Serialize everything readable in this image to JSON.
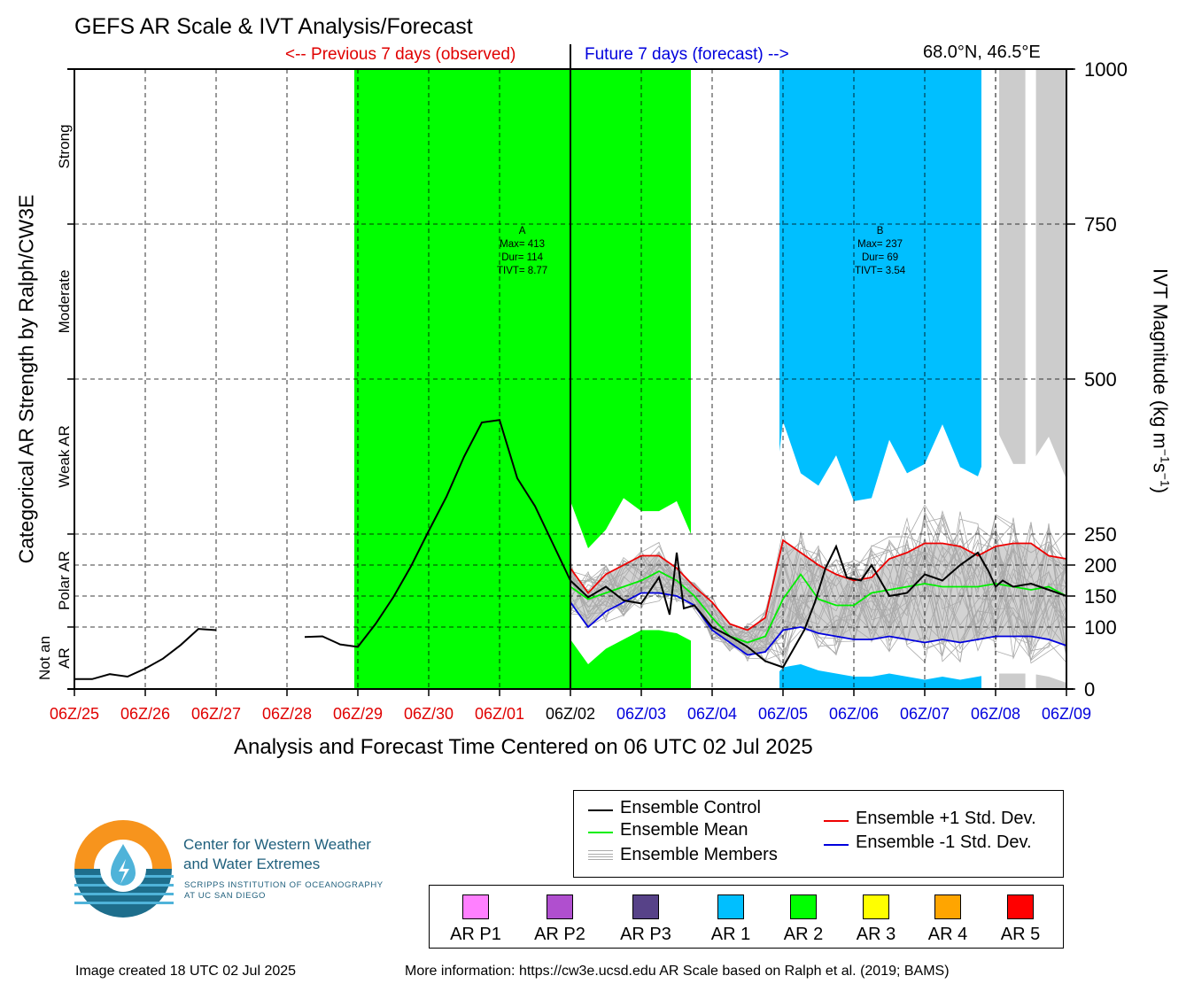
{
  "header": {
    "title": "GEFS AR Scale & IVT Analysis/Forecast",
    "previous_label": "<-- Previous 7 days (observed)",
    "future_label": "Future 7 days (forecast) -->",
    "location": "68.0°N, 46.5°E"
  },
  "chart_data": {
    "type": "line",
    "xlabel": "Analysis and Forecast Time Centered on 06 UTC 02 Jul 2025",
    "ylabel_left": "Categorical AR Strength by Ralph/CW3E",
    "ylabel_right_main": "IVT Magnitude (kg m",
    "ylabel_right_sup1": "−1",
    "ylabel_right_mid": "s",
    "ylabel_right_sup2": "−1",
    "ylabel_right_end": ")",
    "x_ticks": [
      {
        "label": "06Z/25",
        "color": "#e00000"
      },
      {
        "label": "06Z/26",
        "color": "#e00000"
      },
      {
        "label": "06Z/27",
        "color": "#e00000"
      },
      {
        "label": "06Z/28",
        "color": "#e00000"
      },
      {
        "label": "06Z/29",
        "color": "#e00000"
      },
      {
        "label": "06Z/30",
        "color": "#e00000"
      },
      {
        "label": "06Z/01",
        "color": "#e00000"
      },
      {
        "label": "06Z/02",
        "color": "#000000"
      },
      {
        "label": "06Z/03",
        "color": "#0000dd"
      },
      {
        "label": "06Z/04",
        "color": "#0000dd"
      },
      {
        "label": "06Z/05",
        "color": "#0000dd"
      },
      {
        "label": "06Z/06",
        "color": "#0000dd"
      },
      {
        "label": "06Z/07",
        "color": "#0000dd"
      },
      {
        "label": "06Z/08",
        "color": "#0000dd"
      },
      {
        "label": "06Z/09",
        "color": "#0000dd"
      }
    ],
    "x_range_days": [
      0,
      14
    ],
    "y_ticks": [
      {
        "label": "0",
        "value": 0
      },
      {
        "label": "100",
        "value": 100
      },
      {
        "label": "150",
        "value": 150
      },
      {
        "label": "200",
        "value": 200
      },
      {
        "label": "250",
        "value": 250
      },
      {
        "label": "500",
        "value": 500
      },
      {
        "label": "750",
        "value": 750
      },
      {
        "label": "1000",
        "value": 1000
      }
    ],
    "y_scale_note": "piecewise: 0-250 linear (4 segments), 250-1000 linear",
    "categories_left": [
      {
        "label": "Not an",
        "label2": "AR",
        "from": 0,
        "to": 100
      },
      {
        "label": "Polar AR",
        "from": 100,
        "to": 250
      },
      {
        "label": "Weak AR",
        "from": 250,
        "to": 500
      },
      {
        "label": "Moderate",
        "from": 500,
        "to": 750
      },
      {
        "label": "Strong",
        "from": 750,
        "to": 1000
      }
    ],
    "ar_events": [
      {
        "name": "A",
        "max_label": "Max= 413",
        "dur_label": "Dur= 114",
        "tivt_label": "TIVT= 8.77",
        "start_day": 3.95,
        "end_day": 8.7,
        "color": "#00ff00",
        "category": "AR 2"
      },
      {
        "name": "B",
        "max_label": "Max= 237",
        "dur_label": "Dur= 69",
        "tivt_label": "TIVT= 3.54",
        "start_day": 9.95,
        "end_day": 12.8,
        "color": "#00bfff",
        "category": "AR 1"
      }
    ],
    "grey_bands": [
      {
        "start_day": 13.05,
        "end_day": 13.42
      },
      {
        "start_day": 13.57,
        "end_day": 14.0
      }
    ],
    "series": [
      {
        "name": "Ensemble Control",
        "color": "#000000",
        "x": [
          0,
          0.25,
          0.5,
          0.75,
          1,
          1.25,
          1.5,
          1.75,
          2,
          2.25,
          2.5,
          2.75,
          3,
          3.25,
          3.5,
          3.75,
          4,
          4.25,
          4.5,
          4.75,
          5,
          5.25,
          5.5,
          5.75,
          6,
          6.25,
          6.5,
          6.75,
          7,
          7.25,
          7.5,
          7.75,
          8,
          8.25,
          8.4,
          8.5,
          8.6,
          8.75,
          9,
          9.25,
          9.5,
          9.75,
          10,
          10.15,
          10.3,
          10.45,
          10.6,
          10.75,
          10.9,
          11.1,
          11.25,
          11.5,
          11.75,
          12,
          12.25,
          12.5,
          12.75,
          12.9,
          13,
          13.1,
          13.25,
          13.5,
          13.75,
          14
        ],
        "y": [
          16,
          16,
          24,
          20,
          33,
          49,
          71,
          97,
          95,
          null,
          null,
          null,
          null,
          84,
          85,
          72,
          68,
          105,
          148,
          198,
          255,
          310,
          375,
          430,
          434,
          340,
          295,
          235,
          175,
          148,
          165,
          143,
          138,
          180,
          120,
          220,
          130,
          135,
          100,
          85,
          68,
          45,
          35,
          65,
          95,
          140,
          195,
          230,
          180,
          175,
          200,
          150,
          155,
          185,
          175,
          200,
          220,
          190,
          165,
          175,
          165,
          170,
          160,
          150
        ],
        "y_note": "approximate values read off the plot; Jun 27-28 gap"
      },
      {
        "name": "Ensemble Mean",
        "color": "#00ee00",
        "x": [
          7,
          7.25,
          7.5,
          7.75,
          8,
          8.25,
          8.5,
          8.75,
          9,
          9.25,
          9.5,
          9.75,
          10,
          10.25,
          10.5,
          10.75,
          11,
          11.25,
          11.5,
          11.75,
          12,
          12.25,
          12.5,
          12.75,
          13,
          13.25,
          13.5,
          13.75,
          14
        ],
        "y": [
          165,
          145,
          155,
          165,
          175,
          190,
          175,
          150,
          115,
          85,
          75,
          85,
          145,
          185,
          145,
          135,
          135,
          155,
          160,
          165,
          170,
          165,
          165,
          165,
          170,
          165,
          160,
          165,
          150
        ],
        "y_note": "approximate"
      },
      {
        "name": "Ensemble +1 Std. Dev.",
        "color": "#ee0000",
        "x": [
          7,
          7.25,
          7.5,
          7.75,
          8,
          8.25,
          8.5,
          8.75,
          9,
          9.25,
          9.5,
          9.75,
          10,
          10.25,
          10.5,
          10.75,
          11,
          11.25,
          11.5,
          11.75,
          12,
          12.25,
          12.5,
          12.75,
          13,
          13.25,
          13.5,
          13.75,
          14
        ],
        "y": [
          195,
          155,
          185,
          200,
          215,
          215,
          195,
          165,
          140,
          105,
          95,
          115,
          240,
          220,
          200,
          185,
          175,
          180,
          210,
          220,
          235,
          235,
          230,
          215,
          230,
          235,
          235,
          215,
          210
        ],
        "y_note": "approximate"
      },
      {
        "name": "Ensemble -1 Std. Dev.",
        "color": "#0000dd",
        "x": [
          7,
          7.25,
          7.5,
          7.75,
          8,
          8.25,
          8.5,
          8.75,
          9,
          9.25,
          9.5,
          9.75,
          10,
          10.25,
          10.5,
          10.75,
          11,
          11.25,
          11.5,
          11.75,
          12,
          12.25,
          12.5,
          12.75,
          13,
          13.25,
          13.5,
          13.75,
          14
        ],
        "y": [
          140,
          100,
          125,
          140,
          155,
          155,
          150,
          135,
          95,
          75,
          55,
          60,
          95,
          100,
          90,
          85,
          80,
          80,
          85,
          80,
          75,
          80,
          75,
          80,
          85,
          85,
          85,
          80,
          70
        ],
        "y_note": "approximate"
      }
    ],
    "ensemble_members_label": "Ensemble Members",
    "grid": true,
    "legend_placement": "bottom-right"
  },
  "legend": {
    "items": [
      {
        "label": "Ensemble Control",
        "color": "#000000"
      },
      {
        "label": "Ensemble Mean",
        "color": "#00ee00"
      },
      {
        "label": "Ensemble Members",
        "color": "#aaaaaa"
      },
      {
        "label": "Ensemble +1 Std. Dev.",
        "color": "#ee0000"
      },
      {
        "label": "Ensemble -1 Std. Dev.",
        "color": "#0000dd"
      }
    ]
  },
  "ar_categories": [
    {
      "label": "AR P1",
      "color": "#ff80ff"
    },
    {
      "label": "AR P2",
      "color": "#b04fcf"
    },
    {
      "label": "AR P3",
      "color": "#574288"
    },
    {
      "label": "AR 1",
      "color": "#00bfff"
    },
    {
      "label": "AR 2",
      "color": "#00ff00"
    },
    {
      "label": "AR 3",
      "color": "#ffff00"
    },
    {
      "label": "AR 4",
      "color": "#ffa500"
    },
    {
      "label": "AR 5",
      "color": "#ff0000"
    }
  ],
  "logo": {
    "line1": "Center for Western Weather",
    "line2": "and Water Extremes",
    "line3": "SCRIPPS INSTITUTION OF OCEANOGRAPHY",
    "line4": "AT UC SAN DIEGO",
    "orange": "#f7941d",
    "teal": "#1e6e8c",
    "light_blue": "#4fb3d9"
  },
  "footer": {
    "created": "Image created 18 UTC 02 Jul 2025",
    "more_info": "More information: https://cw3e.ucsd.edu AR Scale based on Ralph et al. (2019; BAMS)"
  }
}
